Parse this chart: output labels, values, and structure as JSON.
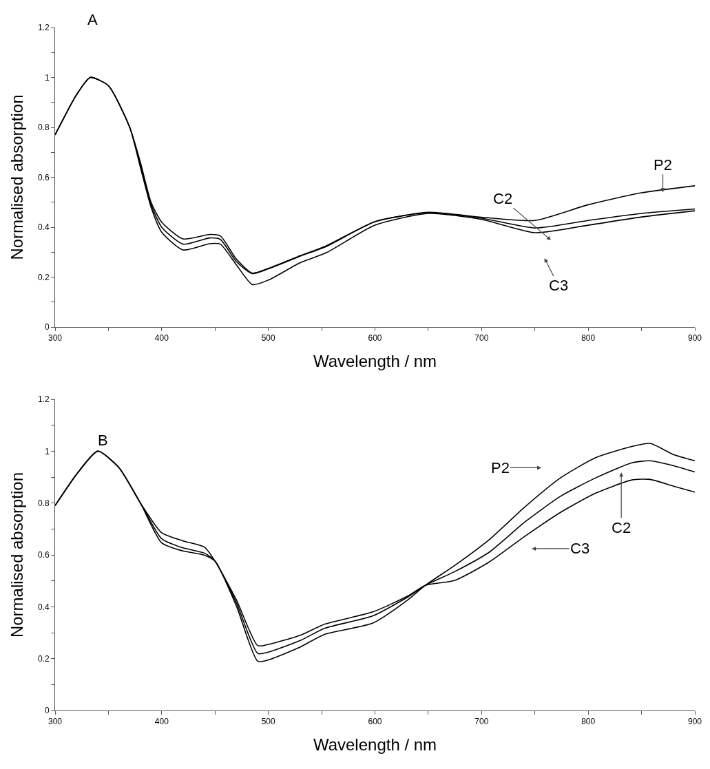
{
  "chart_data": [
    {
      "type": "line",
      "xlabel": "Wavelength / nm",
      "ylabel": "Normalised absorption",
      "xlim": [
        300,
        900
      ],
      "xticks": [
        300,
        {
          "value": 350,
          "label": null
        },
        400,
        {
          "value": 450,
          "label": null
        },
        500,
        {
          "value": 550,
          "label": null
        },
        600,
        {
          "value": 650,
          "label": null
        },
        700,
        {
          "value": 750,
          "label": null
        },
        800,
        {
          "value": 850,
          "label": null
        },
        900
      ],
      "ylim": [
        0,
        1.2
      ],
      "yticks": [
        0,
        {
          "value": 0.1,
          "label": null
        },
        0.2,
        {
          "value": 0.3,
          "label": null
        },
        0.4,
        {
          "value": 0.5,
          "label": null
        },
        0.6,
        {
          "value": 0.7,
          "label": null
        },
        0.8,
        {
          "value": 0.9,
          "label": null
        },
        1,
        {
          "value": 1.1,
          "label": null
        },
        1.2
      ],
      "grid": false,
      "marker": "none",
      "line_style": "solid",
      "x": [
        300,
        320,
        333,
        350,
        370,
        380,
        390,
        400,
        420,
        445,
        455,
        470,
        485,
        500,
        530,
        554,
        600,
        650,
        700,
        750,
        800,
        850,
        900
      ],
      "series": [
        {
          "color": "#000000",
          "values": [
            0.77,
            0.93,
            1.0,
            0.967,
            0.8,
            0.66,
            0.5,
            0.42,
            0.353,
            0.371,
            0.365,
            0.272,
            0.216,
            0.235,
            0.286,
            0.325,
            0.422,
            0.46,
            0.44,
            0.427,
            0.49,
            0.538,
            0.566
          ]
        },
        {
          "color": "#000000",
          "values": [
            0.77,
            0.93,
            1.0,
            0.967,
            0.8,
            0.65,
            0.49,
            0.4,
            0.332,
            0.357,
            0.351,
            0.262,
            0.214,
            0.233,
            0.284,
            0.322,
            0.422,
            0.458,
            0.436,
            0.397,
            0.427,
            0.455,
            0.473
          ]
        },
        {
          "color": "#000000",
          "values": [
            0.77,
            0.93,
            1.0,
            0.967,
            0.8,
            0.64,
            0.48,
            0.38,
            0.309,
            0.334,
            0.332,
            0.249,
            0.17,
            0.188,
            0.258,
            0.297,
            0.408,
            0.455,
            0.431,
            0.378,
            0.408,
            0.441,
            0.466
          ]
        }
      ],
      "annotations": [
        "A",
        "P2",
        "C2",
        "C3"
      ]
    },
    {
      "type": "line",
      "xlabel": "Wavelength / nm",
      "ylabel": "Normalised absorption",
      "xlim": [
        300,
        900
      ],
      "xticks": [
        300,
        {
          "value": 350,
          "label": null
        },
        400,
        {
          "value": 450,
          "label": null
        },
        500,
        {
          "value": 550,
          "label": null
        },
        600,
        {
          "value": 650,
          "label": null
        },
        700,
        {
          "value": 750,
          "label": null
        },
        800,
        {
          "value": 850,
          "label": null
        },
        900
      ],
      "ylim": [
        0,
        1.2
      ],
      "yticks": [
        0,
        {
          "value": 0.1,
          "label": null
        },
        0.2,
        {
          "value": 0.3,
          "label": null
        },
        0.4,
        {
          "value": 0.5,
          "label": null
        },
        0.6,
        {
          "value": 0.7,
          "label": null
        },
        0.8,
        {
          "value": 0.9,
          "label": null
        },
        1,
        {
          "value": 1.1,
          "label": null
        },
        1.2
      ],
      "grid": false,
      "marker": "none",
      "line_style": "solid",
      "x": [
        300,
        320,
        340,
        360,
        380,
        400,
        420,
        440,
        450,
        470,
        490,
        500,
        530,
        553,
        598,
        631,
        647,
        675,
        707,
        740,
        774,
        807,
        841,
        858,
        880,
        900
      ],
      "series": [
        {
          "color": "#000000",
          "values": [
            0.79,
            0.91,
            1.0,
            0.936,
            0.8,
            0.685,
            0.654,
            0.63,
            0.576,
            0.427,
            0.25,
            0.255,
            0.29,
            0.333,
            0.38,
            0.442,
            0.482,
            0.502,
            0.572,
            0.67,
            0.764,
            0.838,
            0.889,
            0.891,
            0.865,
            0.842
          ]
        },
        {
          "color": "#000000",
          "values": [
            0.79,
            0.91,
            1.0,
            0.936,
            0.8,
            0.662,
            0.627,
            0.607,
            0.576,
            0.415,
            0.22,
            0.225,
            0.27,
            0.317,
            0.365,
            0.438,
            0.482,
            0.536,
            0.61,
            0.725,
            0.826,
            0.897,
            0.955,
            0.963,
            0.944,
            0.92
          ]
        },
        {
          "color": "#000000",
          "values": [
            0.79,
            0.91,
            1.0,
            0.936,
            0.8,
            0.646,
            0.615,
            0.599,
            0.576,
            0.403,
            0.19,
            0.195,
            0.245,
            0.294,
            0.337,
            0.427,
            0.482,
            0.56,
            0.658,
            0.783,
            0.897,
            0.975,
            1.018,
            1.03,
            0.987,
            0.963
          ]
        }
      ],
      "annotations": [
        "B",
        "P2",
        "C2",
        "C3"
      ]
    }
  ]
}
